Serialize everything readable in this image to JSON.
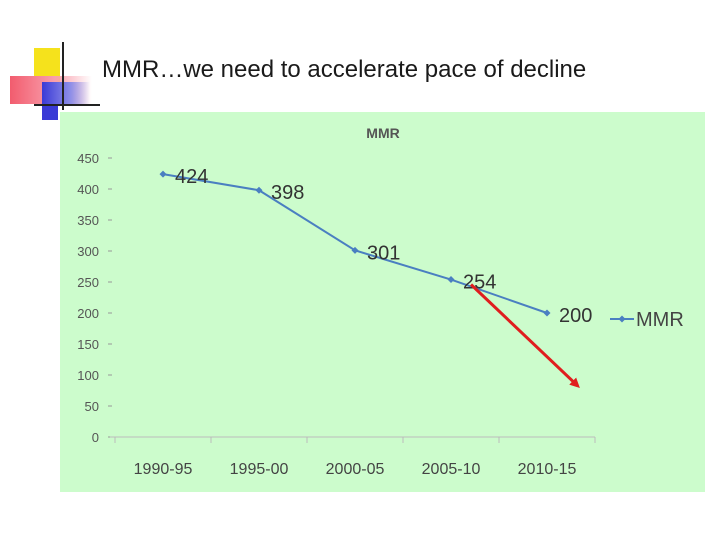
{
  "slide": {
    "title": "MMR…we need to accelerate pace of decline"
  },
  "colors": {
    "plot_bg": "#ccfccc",
    "series": "#4a7fc1",
    "arrow": "#e01e1e",
    "deco_yellow": "#f5e21c",
    "deco_red": "#f25c6e",
    "deco_blue": "#3a3ad6"
  },
  "chart_data": {
    "type": "line",
    "title": "MMR",
    "categories": [
      "1990-95",
      "1995-00",
      "2000-05",
      "2005-10",
      "2010-15"
    ],
    "series": [
      {
        "name": "MMR",
        "values": [
          424,
          398,
          301,
          254,
          200
        ]
      }
    ],
    "yticks": [
      0,
      50,
      100,
      150,
      200,
      250,
      300,
      350,
      400,
      450
    ],
    "ylim": [
      0,
      450
    ],
    "legend": "right",
    "annotation": {
      "type": "arrow",
      "from_value": 254,
      "from_category": "2005-10",
      "to_value": 90,
      "to_category": "2010-15",
      "label": ""
    }
  }
}
